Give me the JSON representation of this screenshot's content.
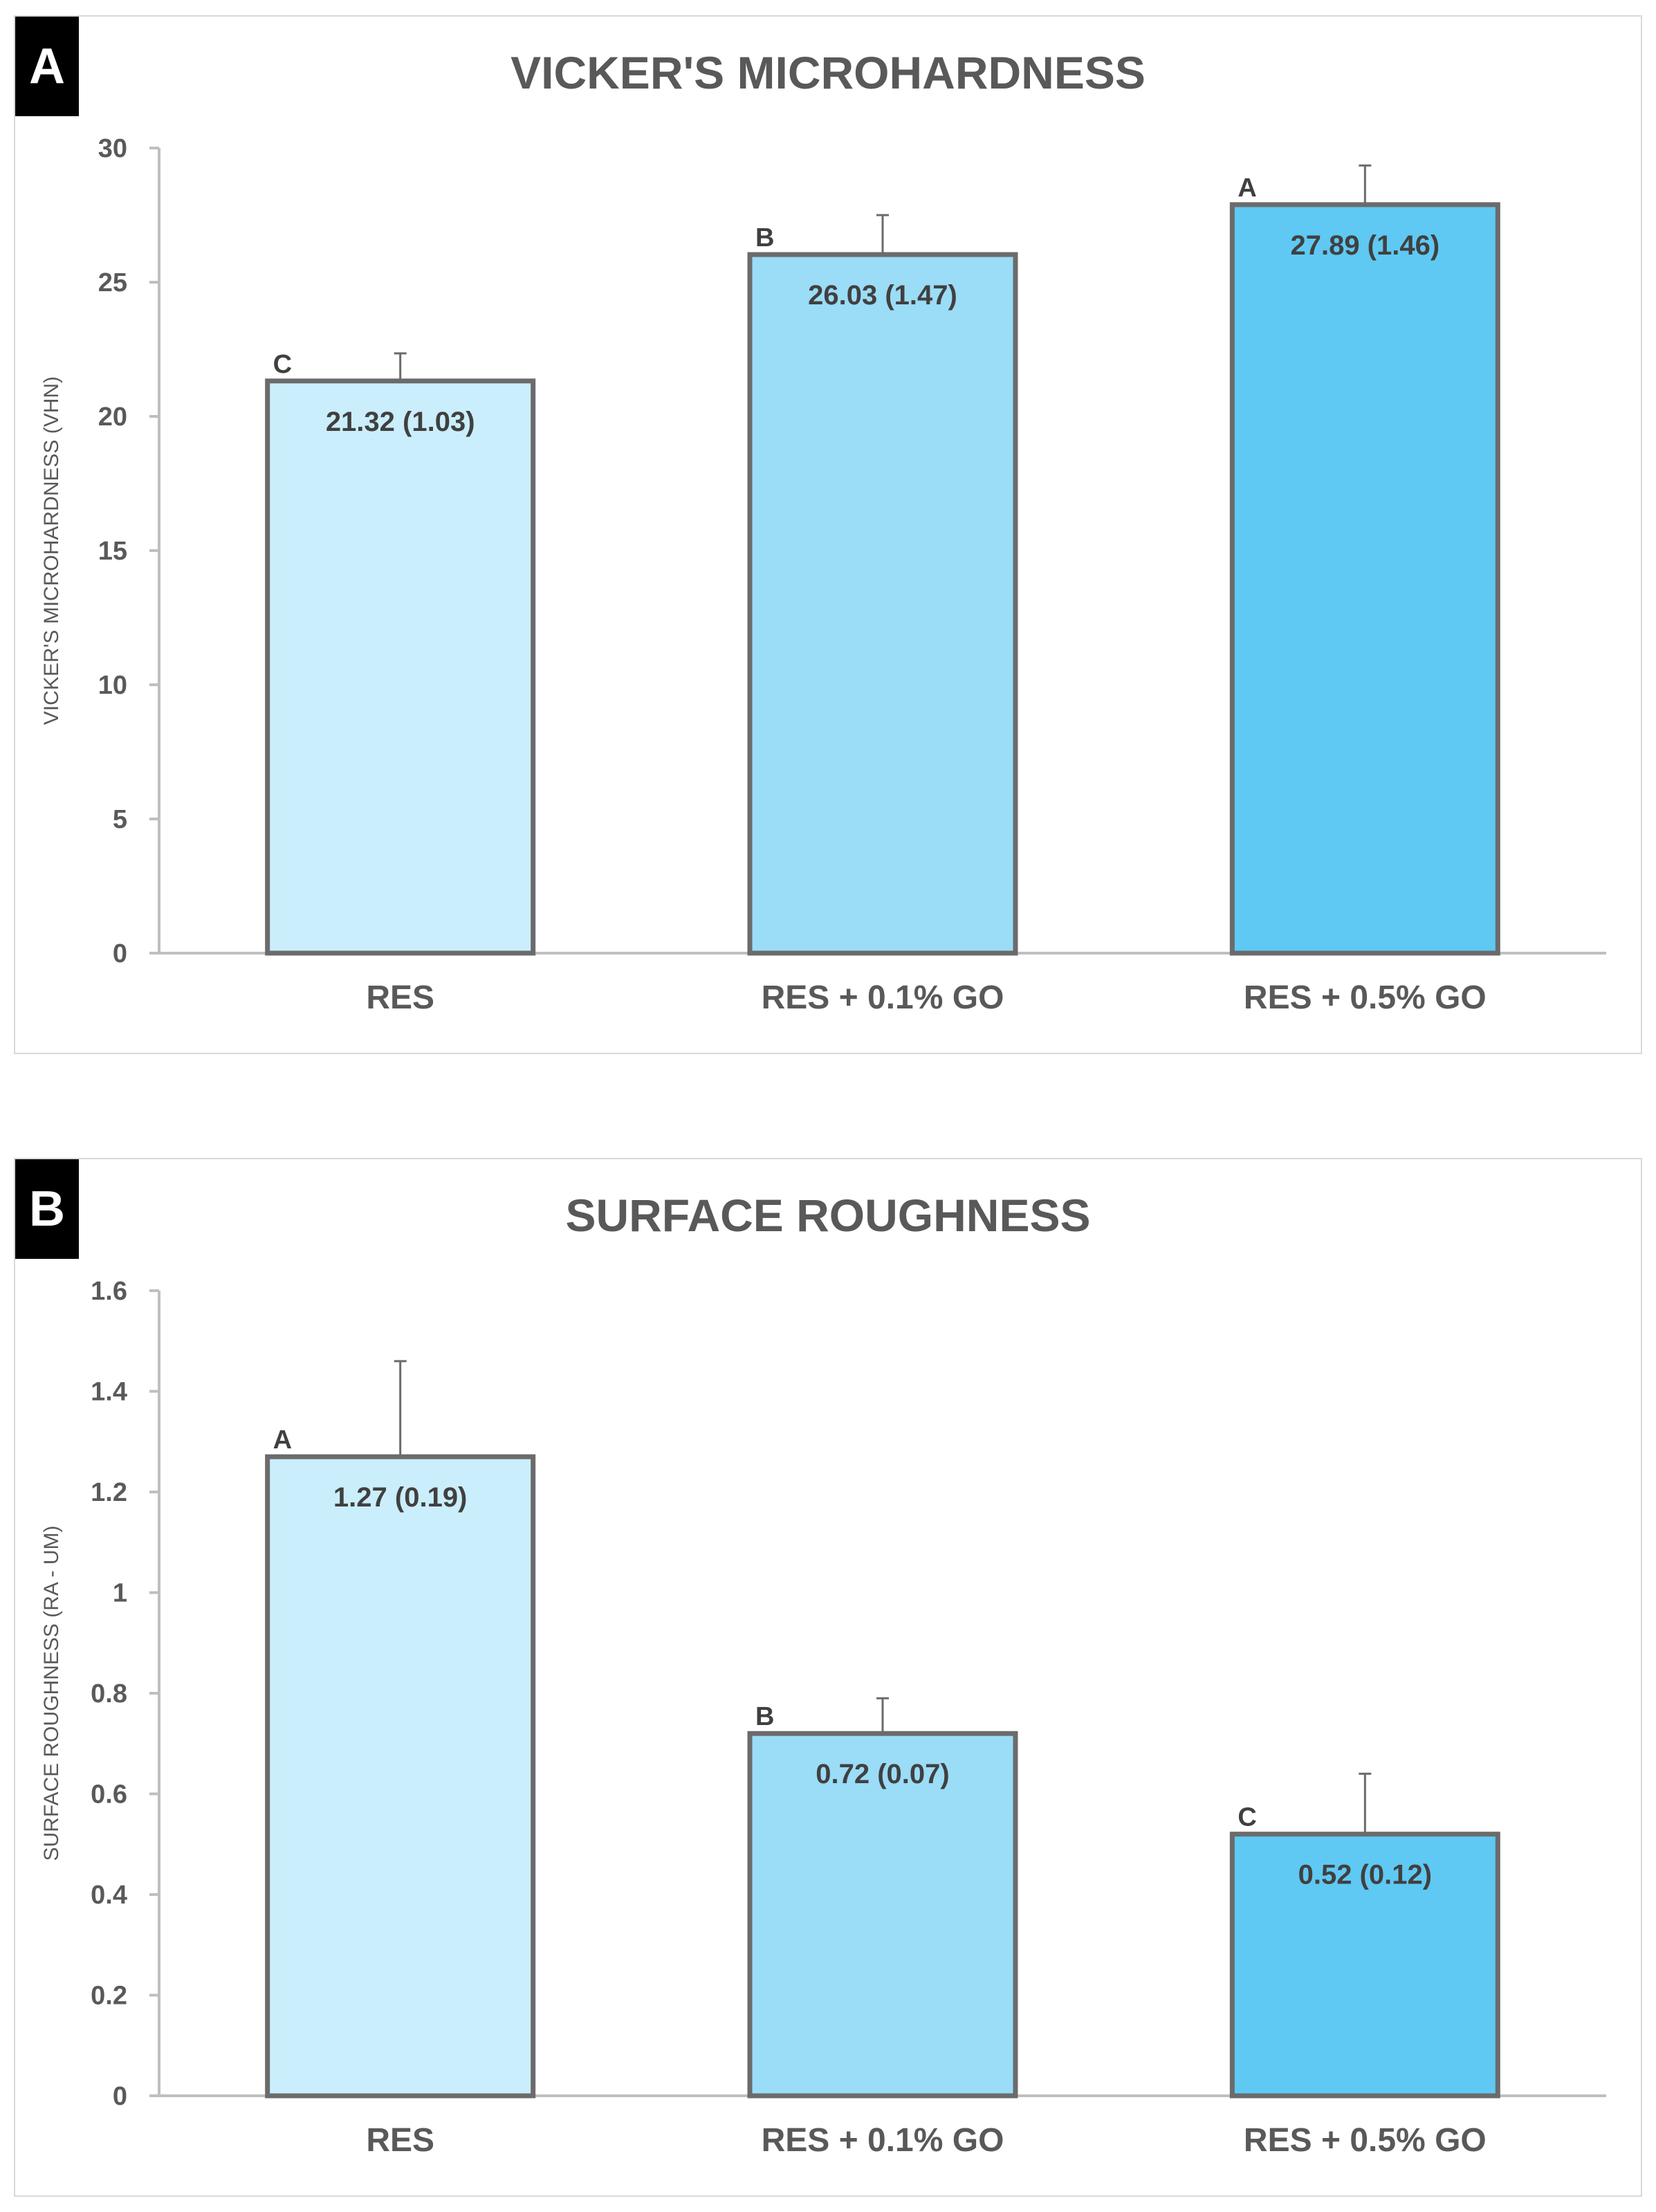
{
  "colors": {
    "bar_fills": [
      "#cbeefc",
      "#9bdcf7",
      "#5fc9f3"
    ],
    "bar_stroke": "#6b6b6b",
    "text": "#595959",
    "label_text": "#404040",
    "axis": "#bfbfbf",
    "panel_letter_bg": "#000000"
  },
  "chart_data": [
    {
      "panel_label": "A",
      "type": "bar",
      "title": "VICKER'S MICROHARDNESS",
      "xlabel": "",
      "ylabel": "VICKER'S MICROHARDNESS (VHN)",
      "ylim": [
        0,
        30
      ],
      "yticks": [
        "0",
        "5",
        "10",
        "15",
        "20",
        "25",
        "30"
      ],
      "categories": [
        "RES",
        "RES + 0.1% GO",
        "RES + 0.5% GO"
      ],
      "values": [
        21.32,
        26.03,
        27.89
      ],
      "errors": [
        1.03,
        1.47,
        1.46
      ],
      "value_labels": [
        "21.32 (1.03)",
        "26.03 (1.47)",
        "27.89 (1.46)"
      ],
      "group_letters": [
        "C",
        "B",
        "A"
      ],
      "grid": false,
      "legend": "none"
    },
    {
      "panel_label": "B",
      "type": "bar",
      "title": "SURFACE ROUGHNESS",
      "xlabel": "",
      "ylabel": "SURFACE ROUGHNESS (RA - UM)",
      "ylim": [
        0,
        1.6
      ],
      "yticks": [
        "0",
        "0.2",
        "0.4",
        "0.6",
        "0.8",
        "1",
        "1.2",
        "1.4",
        "1.6"
      ],
      "categories": [
        "RES",
        "RES + 0.1% GO",
        "RES + 0.5% GO"
      ],
      "values": [
        1.27,
        0.72,
        0.52
      ],
      "errors": [
        0.19,
        0.07,
        0.12
      ],
      "value_labels": [
        "1.27 (0.19)",
        "0.72 (0.07)",
        "0.52 (0.12)"
      ],
      "group_letters": [
        "A",
        "B",
        "C"
      ],
      "grid": false,
      "legend": "none"
    }
  ]
}
